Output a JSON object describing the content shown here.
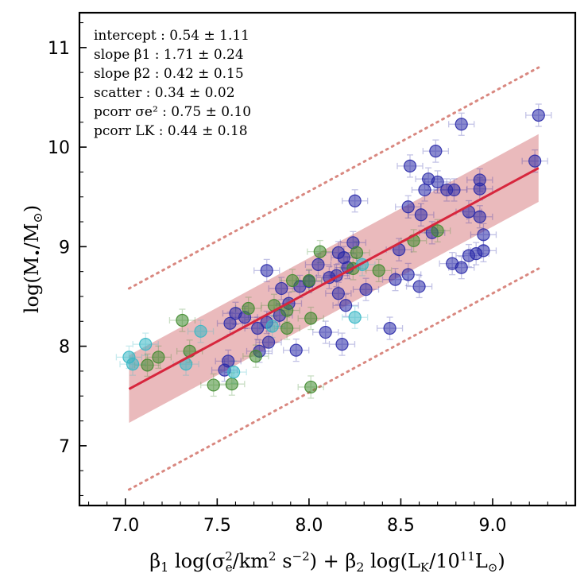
{
  "chart_data": {
    "type": "scatter",
    "xlabel": "β1 log(σe²/km² s⁻²) + β2 log(LK/10¹¹L⊙)",
    "ylabel": "log(M•/M⊙)",
    "xlim": [
      6.75,
      9.45
    ],
    "ylim": [
      6.4,
      11.35
    ],
    "x_ticks": [
      "7.0",
      "7.5",
      "8.0",
      "8.5",
      "9.0"
    ],
    "y_ticks": [
      "7",
      "8",
      "9",
      "10",
      "11"
    ],
    "x_tick_values": [
      7.0,
      7.5,
      8.0,
      8.5,
      9.0
    ],
    "y_tick_values": [
      7,
      8,
      9,
      10,
      11
    ],
    "stats": [
      "intercept : 0.54 ± 1.11",
      "slope β1 : 1.71 ± 0.24",
      "slope β2 : 0.42 ± 0.15",
      "scatter : 0.34 ± 0.02",
      "pcorr σe² : 0.75 ± 0.10",
      "pcorr LK : 0.44 ± 0.18"
    ],
    "fit": {
      "x_range": [
        7.02,
        9.25
      ],
      "y_start": 7.57,
      "y_end": 9.79,
      "band_halfwidth": 0.34,
      "outer_halfwidth": 1.01
    },
    "colors": {
      "fit_line": "#d7263d",
      "band": "#e3a3a6",
      "dotted": "#d98880",
      "blue": "#2a2aa8",
      "green": "#3f8a2e",
      "cyan": "#36b7c4"
    },
    "series": [
      {
        "color": "blue",
        "points": [
          [
            9.25,
            10.32
          ],
          [
            8.83,
            10.23
          ],
          [
            9.23,
            9.86
          ],
          [
            8.69,
            9.96
          ],
          [
            8.55,
            9.81
          ],
          [
            8.7,
            9.65
          ],
          [
            8.65,
            9.68
          ],
          [
            8.63,
            9.57
          ],
          [
            8.79,
            9.57
          ],
          [
            8.75,
            9.57
          ],
          [
            8.93,
            9.67
          ],
          [
            8.93,
            9.58
          ],
          [
            8.25,
            9.46
          ],
          [
            8.54,
            9.4
          ],
          [
            8.61,
            9.32
          ],
          [
            8.87,
            9.35
          ],
          [
            8.93,
            9.3
          ],
          [
            8.67,
            9.14
          ],
          [
            8.95,
            9.12
          ],
          [
            8.49,
            8.97
          ],
          [
            8.24,
            9.04
          ],
          [
            8.16,
            8.94
          ],
          [
            8.19,
            8.89
          ],
          [
            8.21,
            8.79
          ],
          [
            8.05,
            8.82
          ],
          [
            8.15,
            8.71
          ],
          [
            8.11,
            8.69
          ],
          [
            8.0,
            8.65
          ],
          [
            7.95,
            8.6
          ],
          [
            7.85,
            8.58
          ],
          [
            7.77,
            8.76
          ],
          [
            8.95,
            8.96
          ],
          [
            8.91,
            8.93
          ],
          [
            8.87,
            8.91
          ],
          [
            8.78,
            8.83
          ],
          [
            8.83,
            8.79
          ],
          [
            8.54,
            8.72
          ],
          [
            8.6,
            8.6
          ],
          [
            8.47,
            8.67
          ],
          [
            8.31,
            8.57
          ],
          [
            8.16,
            8.53
          ],
          [
            8.2,
            8.41
          ],
          [
            7.89,
            8.43
          ],
          [
            7.84,
            8.31
          ],
          [
            7.77,
            8.24
          ],
          [
            7.72,
            8.18
          ],
          [
            7.57,
            8.23
          ],
          [
            7.65,
            8.29
          ],
          [
            7.6,
            8.33
          ],
          [
            8.09,
            8.14
          ],
          [
            8.18,
            8.02
          ],
          [
            8.44,
            8.18
          ],
          [
            7.93,
            7.96
          ],
          [
            7.78,
            8.04
          ],
          [
            7.73,
            7.95
          ],
          [
            7.56,
            7.85
          ],
          [
            7.54,
            7.76
          ]
        ]
      },
      {
        "color": "green",
        "points": [
          [
            8.06,
            8.95
          ],
          [
            8.26,
            8.94
          ],
          [
            8.0,
            8.66
          ],
          [
            7.91,
            8.66
          ],
          [
            8.24,
            8.78
          ],
          [
            8.38,
            8.76
          ],
          [
            8.57,
            9.06
          ],
          [
            8.7,
            9.16
          ],
          [
            7.88,
            8.36
          ],
          [
            7.81,
            8.41
          ],
          [
            7.67,
            8.38
          ],
          [
            7.88,
            8.18
          ],
          [
            8.01,
            8.28
          ],
          [
            7.31,
            8.26
          ],
          [
            7.35,
            7.95
          ],
          [
            7.18,
            7.89
          ],
          [
            7.12,
            7.81
          ],
          [
            7.48,
            7.61
          ],
          [
            7.58,
            7.62
          ],
          [
            7.71,
            7.9
          ],
          [
            8.01,
            7.59
          ]
        ]
      },
      {
        "color": "cyan",
        "points": [
          [
            7.02,
            7.89
          ],
          [
            7.04,
            7.82
          ],
          [
            7.11,
            8.02
          ],
          [
            7.41,
            8.15
          ],
          [
            7.33,
            7.82
          ],
          [
            7.59,
            7.74
          ],
          [
            8.25,
            8.29
          ],
          [
            7.8,
            8.2
          ],
          [
            8.29,
            8.82
          ]
        ]
      }
    ]
  }
}
